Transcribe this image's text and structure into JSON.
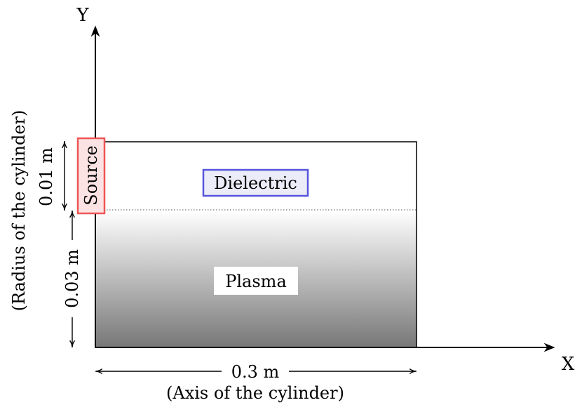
{
  "axes": {
    "x_label": "X",
    "y_label": "Y"
  },
  "regions": {
    "dielectric_label": "Dielectric",
    "plasma_label": "Plasma",
    "source_label": "Source"
  },
  "dimensions": {
    "dielectric_thickness": "0.01 m",
    "plasma_radius": "0.03 m",
    "length": "0.3 m",
    "length_caption": "(Axis of the cylinder)",
    "radius_caption": "(Radius of the cylinder)"
  },
  "colors": {
    "source_border": "#ee5555",
    "source_fill": "#fbe3e3",
    "dielectric_border": "#5555dd",
    "dielectric_fill": "#ececf8",
    "plasma_gradient_top": "#ffffff",
    "plasma_gradient_bottom": "#777777"
  }
}
